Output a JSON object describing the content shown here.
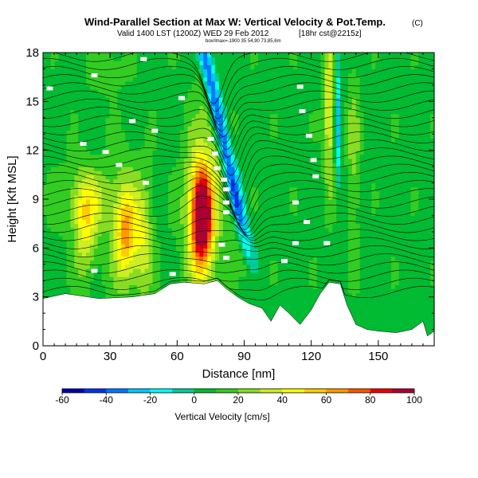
{
  "chart_data": {
    "type": "heatmap",
    "title": "Wind-Parallel Section at Max W: Vertical Velocity & Pot.Temp.",
    "title_units": "(C)",
    "subtitle_valid": "Valid 1400 LST (1200Z) WED 29 Feb 2012",
    "subtitle_run": "[18hr cst@2215z]",
    "subtitle_small": "box/lmax=-1900 35 54,90 73,85,6m",
    "xlabel": "Distance [nm]",
    "ylabel": "Height [Kft MSL]",
    "xlim": [
      0,
      175
    ],
    "ylim": [
      0,
      18
    ],
    "xticks": [
      0,
      30,
      60,
      90,
      120,
      150
    ],
    "yticks": [
      0,
      3,
      6,
      9,
      12,
      15,
      18
    ],
    "colorbar": {
      "label": "Vertical Velocity [cm/s]",
      "ticks": [
        -60,
        -40,
        -20,
        0,
        20,
        40,
        60,
        80,
        100
      ],
      "min": -60,
      "max": 100,
      "colors": [
        "#0000aa",
        "#0033ee",
        "#0077ff",
        "#00c8ff",
        "#00ffee",
        "#00cc99",
        "#00bb33",
        "#33cc22",
        "#88dd22",
        "#ccee22",
        "#ffff00",
        "#ffcc00",
        "#ff9900",
        "#ff5500",
        "#ee0000",
        "#aa0033"
      ]
    },
    "terrain_kft": [
      {
        "x": 0,
        "h": 2.9
      },
      {
        "x": 10,
        "h": 3.2
      },
      {
        "x": 25,
        "h": 2.9
      },
      {
        "x": 40,
        "h": 3.0
      },
      {
        "x": 50,
        "h": 3.2
      },
      {
        "x": 57,
        "h": 3.8
      },
      {
        "x": 63,
        "h": 3.9
      },
      {
        "x": 72,
        "h": 3.8
      },
      {
        "x": 78,
        "h": 4.0
      },
      {
        "x": 82,
        "h": 3.5
      },
      {
        "x": 87,
        "h": 3.0
      },
      {
        "x": 92,
        "h": 2.6
      },
      {
        "x": 98,
        "h": 2.3
      },
      {
        "x": 102,
        "h": 1.5
      },
      {
        "x": 106,
        "h": 2.5
      },
      {
        "x": 110,
        "h": 2.0
      },
      {
        "x": 115,
        "h": 1.3
      },
      {
        "x": 120,
        "h": 2.2
      },
      {
        "x": 124,
        "h": 3.2
      },
      {
        "x": 128,
        "h": 3.9
      },
      {
        "x": 133,
        "h": 3.8
      },
      {
        "x": 136,
        "h": 2.5
      },
      {
        "x": 140,
        "h": 1.3
      },
      {
        "x": 145,
        "h": 1.0
      },
      {
        "x": 150,
        "h": 0.9
      },
      {
        "x": 158,
        "h": 0.8
      },
      {
        "x": 165,
        "h": 1.0
      },
      {
        "x": 170,
        "h": 1.5
      },
      {
        "x": 172,
        "h": 0.6
      },
      {
        "x": 175,
        "h": 0.9
      }
    ],
    "updraft_cores": [
      {
        "x": 71,
        "z": 8.0,
        "max": 100
      },
      {
        "x": 37,
        "z": 6.8,
        "max": 50
      },
      {
        "x": 19,
        "z": 7.0,
        "max": 30
      },
      {
        "x": 45,
        "z": 6.5,
        "max": 25
      },
      {
        "x": 128,
        "z": 15.0,
        "max": 35
      }
    ],
    "downdraft_band": {
      "start_x": 72,
      "start_z": 18,
      "end_x": 92,
      "end_z": 5.5,
      "min": -40
    }
  }
}
